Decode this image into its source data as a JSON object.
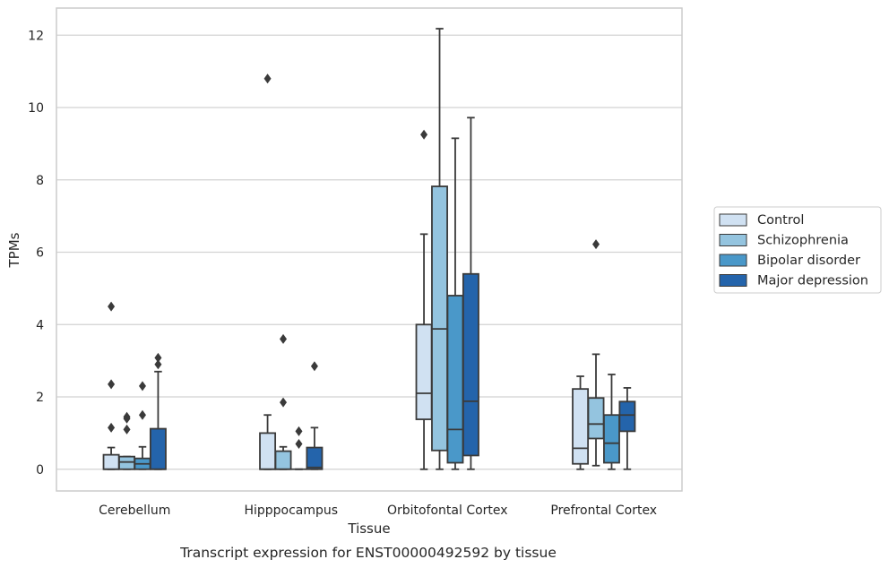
{
  "chart_data": {
    "type": "box",
    "caption": "Transcript expression for ENST00000492592 by tissue",
    "xlabel": "Tissue",
    "ylabel": "TPMs",
    "ylim": [
      -0.6,
      12.75
    ],
    "yticks": [
      0,
      2,
      4,
      6,
      8,
      10,
      12
    ],
    "grid": true,
    "legend_position": "right",
    "categories": [
      "Cerebellum",
      "Hipppocampus",
      "Orbitofontal Cortex",
      "Prefrontal Cortex"
    ],
    "series": [
      {
        "name": "Control",
        "color": "#d0e1f2",
        "boxes": [
          {
            "whislo": 0,
            "q1": 0,
            "med": 0,
            "q3": 0.4,
            "whishi": 0.6,
            "fliers": [
              1.15,
              2.35,
              4.5
            ]
          },
          {
            "whislo": 0,
            "q1": 0,
            "med": 0,
            "q3": 1.0,
            "whishi": 1.5,
            "fliers": [
              10.8
            ]
          },
          {
            "whislo": 0,
            "q1": 1.38,
            "med": 2.1,
            "q3": 4.0,
            "whishi": 6.5,
            "fliers": [
              9.25
            ]
          },
          {
            "whislo": 0,
            "q1": 0.15,
            "med": 0.58,
            "q3": 2.22,
            "whishi": 2.57,
            "fliers": []
          }
        ]
      },
      {
        "name": "Schizophrenia",
        "color": "#94c4df",
        "boxes": [
          {
            "whislo": 0,
            "q1": 0,
            "med": 0.2,
            "q3": 0.35,
            "whishi": 0.35,
            "fliers": [
              1.1,
              1.4,
              1.45
            ]
          },
          {
            "whislo": 0,
            "q1": 0,
            "med": 0,
            "q3": 0.5,
            "whishi": 0.62,
            "fliers": [
              1.85,
              3.6
            ]
          },
          {
            "whislo": 0,
            "q1": 0.52,
            "med": 3.88,
            "q3": 7.82,
            "whishi": 12.18,
            "fliers": []
          },
          {
            "whislo": 0.1,
            "q1": 0.85,
            "med": 1.25,
            "q3": 1.97,
            "whishi": 3.18,
            "fliers": [
              6.22
            ]
          }
        ]
      },
      {
        "name": "Bipolar disorder",
        "color": "#4a98c9",
        "boxes": [
          {
            "whislo": 0,
            "q1": 0,
            "med": 0.15,
            "q3": 0.3,
            "whishi": 0.62,
            "fliers": [
              1.5,
              2.3
            ]
          },
          {
            "whislo": 0,
            "q1": 0,
            "med": 0,
            "q3": 0,
            "whishi": 0,
            "fliers": [
              0.7,
              1.05
            ]
          },
          {
            "whislo": 0,
            "q1": 0.18,
            "med": 1.1,
            "q3": 4.8,
            "whishi": 9.15,
            "fliers": []
          },
          {
            "whislo": 0,
            "q1": 0.18,
            "med": 0.72,
            "q3": 1.5,
            "whishi": 2.62,
            "fliers": []
          }
        ]
      },
      {
        "name": "Major depression",
        "color": "#2464ab",
        "boxes": [
          {
            "whislo": 0,
            "q1": 0,
            "med": 0,
            "q3": 1.12,
            "whishi": 2.7,
            "fliers": [
              2.9,
              3.08
            ]
          },
          {
            "whislo": 0,
            "q1": 0,
            "med": 0.05,
            "q3": 0.6,
            "whishi": 1.15,
            "fliers": [
              2.85
            ]
          },
          {
            "whislo": 0,
            "q1": 0.38,
            "med": 1.88,
            "q3": 5.4,
            "whishi": 9.72,
            "fliers": []
          },
          {
            "whislo": 0,
            "q1": 1.05,
            "med": 1.5,
            "q3": 1.87,
            "whishi": 2.25,
            "fliers": []
          }
        ]
      }
    ]
  }
}
